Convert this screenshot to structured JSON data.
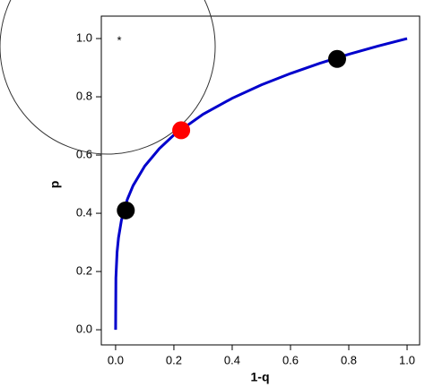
{
  "chart_data": {
    "type": "line",
    "xlabel": "1-q",
    "ylabel": "p",
    "annotations": [
      "*"
    ],
    "curve": {
      "color": "#0000cc",
      "x": [
        0,
        0.001,
        0.005,
        0.01,
        0.02,
        0.04,
        0.06,
        0.1,
        0.15,
        0.2,
        0.3,
        0.4,
        0.5,
        0.6,
        0.7,
        0.8,
        0.9,
        1.0
      ],
      "values": [
        0,
        0.178,
        0.266,
        0.316,
        0.376,
        0.447,
        0.495,
        0.562,
        0.622,
        0.669,
        0.74,
        0.795,
        0.841,
        0.88,
        0.915,
        0.946,
        0.974,
        1.0
      ]
    },
    "points": {
      "x": [
        0.035,
        0.225,
        0.76
      ],
      "values": [
        0.41,
        0.685,
        0.93
      ],
      "colors": [
        "#000000",
        "#ff0000",
        "#000000"
      ]
    },
    "xlim": [
      -0.049,
      1.043
    ],
    "ylim": [
      -0.052,
      1.077
    ],
    "xticks": [
      {
        "value": 0,
        "label": "0.0"
      },
      {
        "value": 0.2,
        "label": "0.2"
      },
      {
        "value": 0.4,
        "label": "0.4"
      },
      {
        "value": 0.6,
        "label": "0.6"
      },
      {
        "value": 0.8,
        "label": "0.8"
      },
      {
        "value": 1,
        "label": "1.0"
      }
    ],
    "yticks": [
      {
        "value": 0,
        "label": "0.0"
      },
      {
        "value": 0.2,
        "label": "0.2"
      },
      {
        "value": 0.4,
        "label": "0.4"
      },
      {
        "value": 0.6,
        "label": "0.6"
      },
      {
        "value": 0.8,
        "label": "0.8"
      },
      {
        "value": 1,
        "label": "1.0"
      }
    ]
  }
}
